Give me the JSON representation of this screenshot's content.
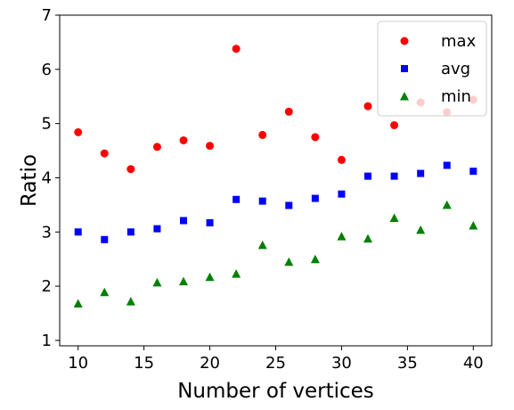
{
  "chart_data": {
    "type": "scatter",
    "title": "",
    "xlabel": "Number of vertices",
    "ylabel": "Ratio",
    "xlim": [
      8.6,
      41.4
    ],
    "ylim": [
      0.9,
      7.0
    ],
    "xticks": [
      10,
      15,
      20,
      25,
      30,
      35,
      40
    ],
    "yticks": [
      1,
      2,
      3,
      4,
      5,
      6,
      7
    ],
    "grid": false,
    "legend_position": "top-right",
    "x": [
      10,
      12,
      14,
      16,
      18,
      20,
      22,
      24,
      26,
      28,
      30,
      32,
      34,
      36,
      38,
      40
    ],
    "series": [
      {
        "name": "max",
        "marker": "circle",
        "color": "#ff0000",
        "values": [
          4.84,
          4.45,
          4.16,
          4.57,
          4.69,
          4.59,
          6.38,
          4.79,
          5.22,
          4.75,
          4.33,
          5.32,
          4.97,
          5.39,
          5.21,
          5.44
        ]
      },
      {
        "name": "avg",
        "marker": "square",
        "color": "#0000ff",
        "values": [
          3.0,
          2.86,
          3.0,
          3.06,
          3.21,
          3.17,
          3.6,
          3.57,
          3.49,
          3.62,
          3.7,
          4.03,
          4.03,
          4.08,
          4.23,
          4.12
        ]
      },
      {
        "name": "min",
        "marker": "triangle",
        "color": "#008000",
        "values": [
          1.68,
          1.89,
          1.72,
          2.07,
          2.09,
          2.17,
          2.23,
          2.76,
          2.45,
          2.5,
          2.92,
          2.88,
          3.26,
          3.04,
          3.5,
          3.12
        ]
      }
    ]
  }
}
